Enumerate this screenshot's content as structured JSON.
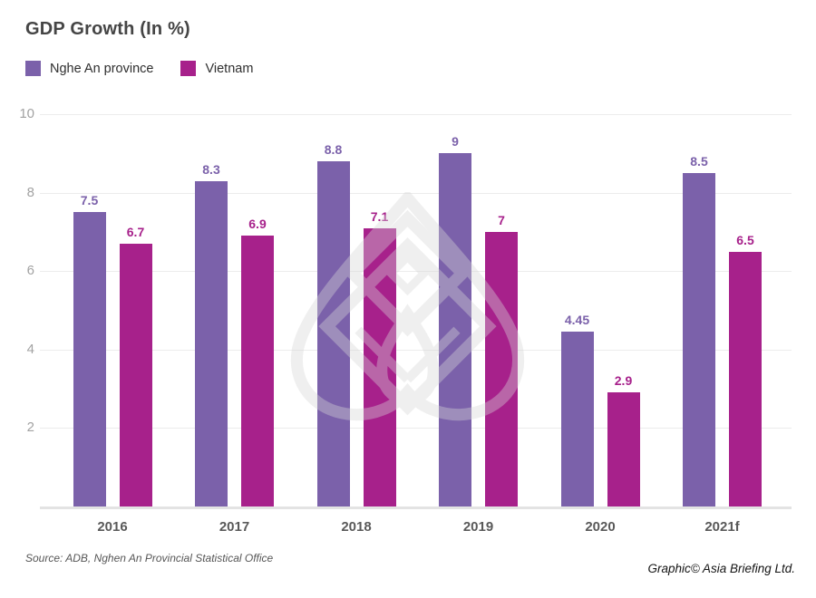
{
  "title": "GDP Growth (In %)",
  "chart_data": {
    "type": "bar",
    "categories": [
      "2016",
      "2017",
      "2018",
      "2019",
      "2020",
      "2021f"
    ],
    "series": [
      {
        "name": "Nghe An province",
        "color": "#7b61aa",
        "values": [
          7.5,
          8.3,
          8.8,
          9,
          4.45,
          8.5
        ]
      },
      {
        "name": "Vietnam",
        "color": "#a7218b",
        "values": [
          6.7,
          6.9,
          7.1,
          7,
          2.9,
          6.5
        ]
      }
    ],
    "title": "GDP Growth (In %)",
    "xlabel": "",
    "ylabel": "",
    "ylim": [
      0,
      10
    ],
    "yticks": [
      2,
      4,
      6,
      8,
      10
    ],
    "grid": true,
    "legend_position": "top-left",
    "value_labels": true
  },
  "footer": {
    "source": "Source: ADB, Nghen An Provincial Statistical Office",
    "credit": "Graphic© Asia Briefing Ltd."
  },
  "colors": {
    "series_1": "#7b61aa",
    "series_2": "#a7218b",
    "gridline": "#ececec",
    "baseline": "#e3e3e3",
    "title_text": "#454545",
    "axis_text": "#a2a2a2",
    "xtick_text": "#595959",
    "watermark": "#d7d7d7"
  },
  "icons": {
    "watermark": "asia-briefing-lotus-logo"
  }
}
